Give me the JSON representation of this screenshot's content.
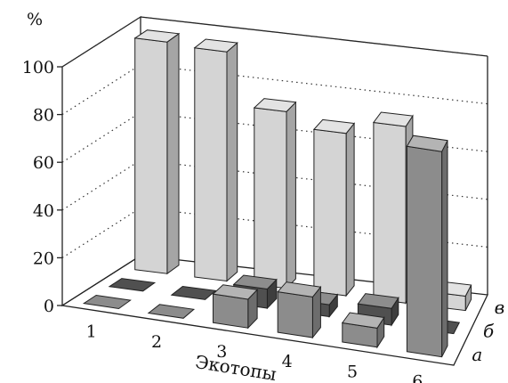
{
  "chart_data": {
    "type": "bar",
    "style": "3d-bar",
    "ylabel": "%",
    "xlabel": "Экотопы",
    "ylim": [
      0,
      100
    ],
    "yticks": [
      "0",
      "20",
      "40",
      "60",
      "80",
      "100"
    ],
    "grid": "dotted",
    "categories": [
      "1",
      "2",
      "3",
      "4",
      "5",
      "6"
    ],
    "series": [
      {
        "name": "а",
        "color": "#8c8c8c",
        "values": [
          0,
          0,
          12,
          17,
          8,
          86
        ]
      },
      {
        "name": "б",
        "color": "#505050",
        "values": [
          0,
          0,
          8,
          5,
          7,
          0
        ]
      },
      {
        "name": "в",
        "color": "#d4d4d4",
        "values": [
          97,
          96,
          74,
          68,
          74,
          6
        ]
      }
    ]
  }
}
